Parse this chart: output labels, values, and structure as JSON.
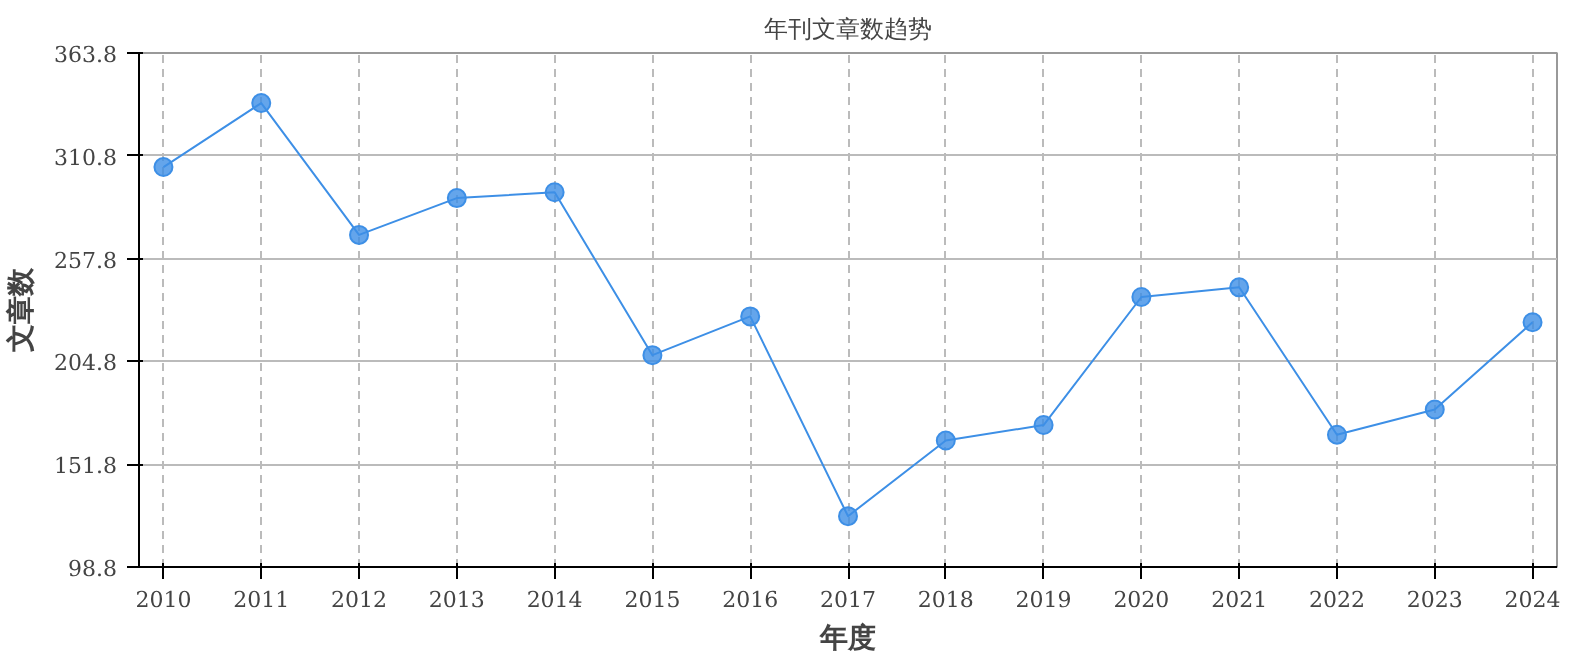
{
  "chart_data": {
    "type": "line",
    "title": "年刊文章数趋势",
    "xlabel": "年度",
    "ylabel": "文章数",
    "categories": [
      "2010",
      "2011",
      "2012",
      "2013",
      "2014",
      "2015",
      "2016",
      "2017",
      "2018",
      "2019",
      "2020",
      "2021",
      "2022",
      "2023",
      "2024"
    ],
    "series": [
      {
        "color": "#3d8fe6",
        "values": [
          305,
          338,
          270,
          289,
          292,
          208,
          228,
          125,
          164,
          172,
          238,
          243,
          167,
          180,
          225
        ]
      }
    ],
    "ylim": [
      98.8,
      363.8
    ],
    "yticks": [
      98.8,
      151.8,
      204.8,
      257.8,
      310.8,
      363.8
    ],
    "grid": true,
    "marker": "circle",
    "line_style": "solid"
  }
}
